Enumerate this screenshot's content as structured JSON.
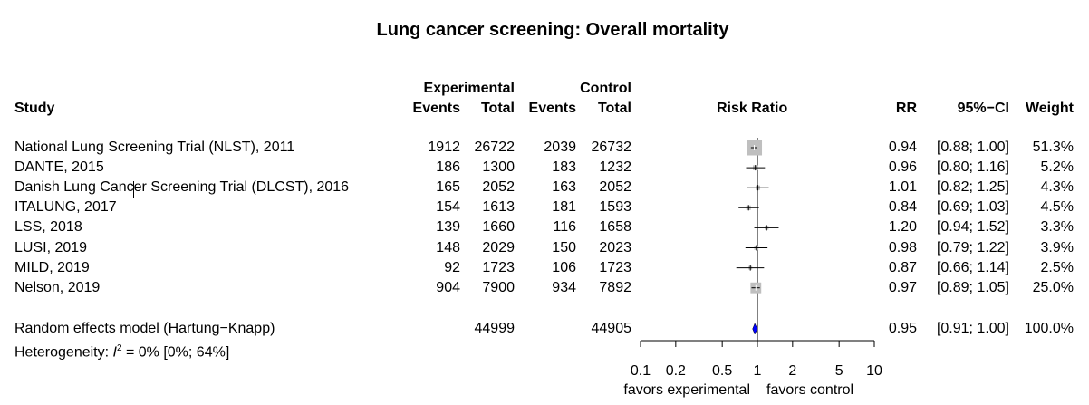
{
  "title": "Lung cancer screening: Overall mortality",
  "headers": {
    "experimental": "Experimental",
    "control": "Control",
    "study": "Study",
    "events_e": "Events",
    "total_e": "Total",
    "events_c": "Events",
    "total_c": "Total",
    "risk_ratio": "Risk Ratio",
    "rr": "RR",
    "ci": "95%−CI",
    "weight": "Weight"
  },
  "studies": [
    {
      "name": "National Lung Screening Trial (NLST), 2011",
      "ev_e": "1912",
      "tot_e": "26722",
      "ev_c": "2039",
      "tot_c": "26732",
      "rr_text": "0.94",
      "ci_text": "[0.88; 1.00]",
      "weight_text": "51.3%"
    },
    {
      "name": "DANTE, 2015",
      "ev_e": "186",
      "tot_e": "1300",
      "ev_c": "183",
      "tot_c": "1232",
      "rr_text": "0.96",
      "ci_text": "[0.80; 1.16]",
      "weight_text": "5.2%"
    },
    {
      "name": "Danish Lung Cancer Screening Trial (DLCST), 2016",
      "ev_e": "165",
      "tot_e": "2052",
      "ev_c": "163",
      "tot_c": "2052",
      "rr_text": "1.01",
      "ci_text": "[0.82; 1.25]",
      "weight_text": "4.3%"
    },
    {
      "name": "ITALUNG, 2017",
      "ev_e": "154",
      "tot_e": "1613",
      "ev_c": "181",
      "tot_c": "1593",
      "rr_text": "0.84",
      "ci_text": "[0.69; 1.03]",
      "weight_text": "4.5%"
    },
    {
      "name": "LSS, 2018",
      "ev_e": "139",
      "tot_e": "1660",
      "ev_c": "116",
      "tot_c": "1658",
      "rr_text": "1.20",
      "ci_text": "[0.94; 1.52]",
      "weight_text": "3.3%"
    },
    {
      "name": "LUSI, 2019",
      "ev_e": "148",
      "tot_e": "2029",
      "ev_c": "150",
      "tot_c": "2023",
      "rr_text": "0.98",
      "ci_text": "[0.79; 1.22]",
      "weight_text": "3.9%"
    },
    {
      "name": "MILD, 2019",
      "ev_e": "92",
      "tot_e": "1723",
      "ev_c": "106",
      "tot_c": "1723",
      "rr_text": "0.87",
      "ci_text": "[0.66; 1.14]",
      "weight_text": "2.5%"
    },
    {
      "name": "Nelson, 2019",
      "ev_e": "904",
      "tot_e": "7900",
      "ev_c": "934",
      "tot_c": "7892",
      "rr_text": "0.97",
      "ci_text": "[0.89; 1.05]",
      "weight_text": "25.0%"
    }
  ],
  "pooled": {
    "name": "Random effects model  (Hartung−Knapp)",
    "tot_e": "44999",
    "tot_c": "44905",
    "rr_text": "0.95",
    "ci_text": "[0.91; 1.00]",
    "weight_text": "100.0%"
  },
  "heterogeneity": {
    "prefix": "Heterogeneity: ",
    "symbol": "I",
    "sup": "2",
    "rest": " = 0% [0%; 64%]"
  },
  "axis": {
    "ticks": [
      "0.1",
      "0.2",
      "0.5",
      "1",
      "2",
      "5",
      "10"
    ],
    "left_label": "favors experimental",
    "right_label": "favors control"
  },
  "colors": {
    "study_box": "#bfbfbf",
    "ci_line": "#000000",
    "diamond": "#0000ff"
  },
  "chart_data": {
    "type": "forest",
    "title": "Lung cancer screening: Overall mortality",
    "xlabel": "Risk Ratio",
    "scale": "log",
    "xlim": [
      0.1,
      10
    ],
    "xticks": [
      0.1,
      0.2,
      0.5,
      1,
      2,
      5,
      10
    ],
    "null_value": 1,
    "studies": [
      {
        "label": "National Lung Screening Trial (NLST), 2011",
        "rr": 0.94,
        "lower": 0.88,
        "upper": 1.0,
        "weight": 51.3
      },
      {
        "label": "DANTE, 2015",
        "rr": 0.96,
        "lower": 0.8,
        "upper": 1.16,
        "weight": 5.2
      },
      {
        "label": "Danish Lung Cancer Screening Trial (DLCST), 2016",
        "rr": 1.01,
        "lower": 0.82,
        "upper": 1.25,
        "weight": 4.3
      },
      {
        "label": "ITALUNG, 2017",
        "rr": 0.84,
        "lower": 0.69,
        "upper": 1.03,
        "weight": 4.5
      },
      {
        "label": "LSS, 2018",
        "rr": 1.2,
        "lower": 0.94,
        "upper": 1.52,
        "weight": 3.3
      },
      {
        "label": "LUSI, 2019",
        "rr": 0.98,
        "lower": 0.79,
        "upper": 1.22,
        "weight": 3.9
      },
      {
        "label": "MILD, 2019",
        "rr": 0.87,
        "lower": 0.66,
        "upper": 1.14,
        "weight": 2.5
      },
      {
        "label": "Nelson, 2019",
        "rr": 0.97,
        "lower": 0.89,
        "upper": 1.05,
        "weight": 25.0
      }
    ],
    "pooled": {
      "label": "Random effects model  (Hartung−Knapp)",
      "rr": 0.95,
      "lower": 0.91,
      "upper": 1.0,
      "weight": 100.0
    }
  }
}
